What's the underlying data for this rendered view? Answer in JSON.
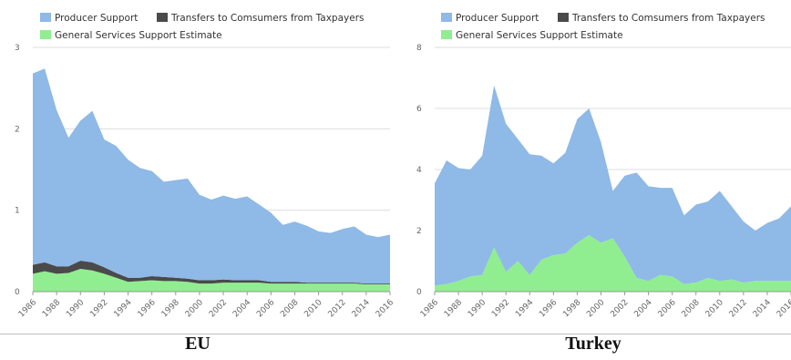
{
  "colors": {
    "producer": "#8fb9e6",
    "transfers": "#4a4a4a",
    "general": "#90ee90",
    "grid": "#dddddd",
    "axis": "#999999"
  },
  "legend": {
    "producer": "Producer Support",
    "transfers": "Transfers to Comsumers from Taxpayers",
    "general": "General Services Support Estimate"
  },
  "chart_data": [
    {
      "type": "area",
      "stacked": true,
      "caption": "EU",
      "x": [
        1986,
        1987,
        1988,
        1989,
        1990,
        1991,
        1992,
        1993,
        1994,
        1995,
        1996,
        1997,
        1998,
        1999,
        2000,
        2001,
        2002,
        2003,
        2004,
        2005,
        2006,
        2007,
        2008,
        2009,
        2010,
        2011,
        2012,
        2013,
        2014,
        2015,
        2016
      ],
      "x_tick_labels": [
        "1986",
        "1988",
        "1990",
        "1992",
        "1994",
        "1996",
        "1998",
        "2000",
        "2002",
        "2004",
        "2006",
        "2008",
        "2010",
        "2012",
        "2014",
        "2016"
      ],
      "ylim": [
        0,
        3
      ],
      "y_ticks": [
        0,
        1,
        2,
        3
      ],
      "grid": true,
      "legend_position": "top-left",
      "series": [
        {
          "name": "General Services Support Estimate",
          "key": "general",
          "values": [
            0.22,
            0.25,
            0.22,
            0.23,
            0.28,
            0.26,
            0.22,
            0.17,
            0.12,
            0.13,
            0.14,
            0.13,
            0.13,
            0.12,
            0.1,
            0.1,
            0.11,
            0.11,
            0.11,
            0.11,
            0.1,
            0.1,
            0.1,
            0.1,
            0.1,
            0.1,
            0.1,
            0.1,
            0.09,
            0.09,
            0.09
          ]
        },
        {
          "name": "Transfers to Comsumers from Taxpayers",
          "key": "transfers",
          "values": [
            0.11,
            0.11,
            0.09,
            0.08,
            0.1,
            0.1,
            0.08,
            0.06,
            0.05,
            0.04,
            0.05,
            0.05,
            0.04,
            0.04,
            0.04,
            0.04,
            0.04,
            0.03,
            0.03,
            0.03,
            0.02,
            0.02,
            0.02,
            0.01,
            0.01,
            0.01,
            0.01,
            0.01,
            0.01,
            0.01,
            0.01
          ]
        },
        {
          "name": "Producer Support",
          "key": "producer",
          "values": [
            2.35,
            2.38,
            1.92,
            1.58,
            1.72,
            1.86,
            1.57,
            1.56,
            1.45,
            1.35,
            1.29,
            1.17,
            1.2,
            1.23,
            1.05,
            0.99,
            1.03,
            1.0,
            1.03,
            0.93,
            0.85,
            0.7,
            0.74,
            0.7,
            0.63,
            0.61,
            0.66,
            0.69,
            0.6,
            0.57,
            0.6
          ]
        }
      ]
    },
    {
      "type": "area",
      "stacked": true,
      "caption": "Turkey",
      "x": [
        1986,
        1987,
        1988,
        1989,
        1990,
        1991,
        1992,
        1993,
        1994,
        1995,
        1996,
        1997,
        1998,
        1999,
        2000,
        2001,
        2002,
        2003,
        2004,
        2005,
        2006,
        2007,
        2008,
        2009,
        2010,
        2011,
        2012,
        2013,
        2014,
        2015,
        2016
      ],
      "x_tick_labels": [
        "1986",
        "1988",
        "1990",
        "1992",
        "1994",
        "1996",
        "1998",
        "2000",
        "2002",
        "2004",
        "2006",
        "2008",
        "2010",
        "2012",
        "2014",
        "2016"
      ],
      "ylim": [
        0,
        8
      ],
      "y_ticks": [
        0,
        2,
        4,
        6,
        8
      ],
      "grid": true,
      "legend_position": "top-left",
      "series": [
        {
          "name": "General Services Support Estimate",
          "key": "general",
          "values": [
            0.2,
            0.25,
            0.35,
            0.5,
            0.55,
            1.45,
            0.65,
            1.0,
            0.55,
            1.05,
            1.2,
            1.25,
            1.6,
            1.85,
            1.6,
            1.75,
            1.15,
            0.45,
            0.35,
            0.55,
            0.5,
            0.25,
            0.3,
            0.45,
            0.35,
            0.4,
            0.3,
            0.35,
            0.35,
            0.35,
            0.35
          ]
        },
        {
          "name": "Transfers to Comsumers from Taxpayers",
          "key": "transfers",
          "values": [
            0,
            0,
            0,
            0,
            0,
            0,
            0,
            0,
            0,
            0,
            0,
            0,
            0,
            0,
            0,
            0,
            0,
            0,
            0,
            0,
            0,
            0,
            0,
            0,
            0,
            0,
            0,
            0,
            0,
            0,
            0
          ]
        },
        {
          "name": "Producer Support",
          "key": "producer",
          "values": [
            3.35,
            4.05,
            3.7,
            3.5,
            3.9,
            5.3,
            4.85,
            4.0,
            3.95,
            3.4,
            3.0,
            3.3,
            4.05,
            4.15,
            3.3,
            1.55,
            2.65,
            3.45,
            3.1,
            2.85,
            2.9,
            2.25,
            2.55,
            2.5,
            2.95,
            2.4,
            2.0,
            1.65,
            1.9,
            2.05,
            2.45
          ]
        }
      ]
    }
  ]
}
